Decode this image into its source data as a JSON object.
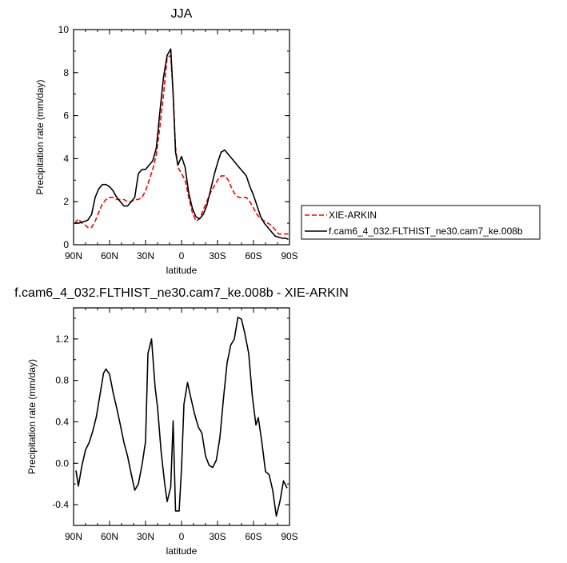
{
  "chart_data": [
    {
      "type": "line",
      "title": "JJA",
      "xlabel": "latitude",
      "ylabel": "Precipitation rate (mm/day)",
      "xlim": [
        90,
        -90
      ],
      "ylim": [
        0,
        10
      ],
      "x_ticks": [
        90,
        60,
        30,
        0,
        -30,
        -60,
        -90
      ],
      "x_tick_labels": [
        "90N",
        "60N",
        "30N",
        "0",
        "30S",
        "60S",
        "90S"
      ],
      "y_ticks": [
        0,
        2,
        4,
        6,
        8,
        10
      ],
      "y_tick_labels": [
        "0",
        "2",
        "4",
        "6",
        "8",
        "10"
      ],
      "legend_position": "right, outside the plot",
      "series": [
        {
          "name": "XIE-ARKIN",
          "color": "#ff0000",
          "dashed": true,
          "x": [
            89,
            86,
            83,
            80,
            78,
            75,
            72,
            69,
            66,
            63,
            60,
            57,
            54,
            51,
            48,
            45,
            42,
            39,
            36,
            33,
            30,
            27,
            24,
            21,
            18,
            15,
            12,
            9,
            7,
            5,
            3,
            0,
            -3,
            -6,
            -9,
            -12,
            -15,
            -18,
            -21,
            -24,
            -27,
            -30,
            -33,
            -36,
            -39,
            -42,
            -45,
            -48,
            -51,
            -54,
            -57,
            -60,
            -63,
            -66,
            -69,
            -72,
            -75,
            -78,
            -81,
            -84,
            -87,
            -89
          ],
          "y": [
            1.0,
            1.2,
            1.0,
            0.9,
            0.8,
            0.8,
            1.1,
            1.5,
            1.9,
            2.1,
            2.2,
            2.2,
            2.1,
            2.1,
            2.1,
            2.0,
            2.0,
            2.1,
            2.1,
            2.2,
            2.5,
            3.0,
            3.5,
            4.2,
            5.5,
            7.0,
            8.7,
            8.8,
            7.0,
            4.5,
            3.6,
            3.3,
            3.0,
            2.2,
            1.5,
            1.1,
            1.2,
            1.6,
            2.0,
            2.4,
            2.7,
            3.0,
            3.2,
            3.2,
            3.0,
            2.6,
            2.3,
            2.2,
            2.2,
            2.2,
            2.0,
            1.7,
            1.4,
            1.2,
            1.1,
            1.0,
            0.9,
            0.7,
            0.5,
            0.5,
            0.5,
            0.5
          ]
        },
        {
          "name": "f.cam6_4_032.FLTHIST_ne30.cam7_ke.008b",
          "color": "#000000",
          "dashed": false,
          "x": [
            89,
            86,
            83,
            80,
            78,
            75,
            72,
            69,
            66,
            63,
            60,
            57,
            54,
            51,
            48,
            45,
            42,
            39,
            36,
            33,
            30,
            27,
            24,
            21,
            18,
            15,
            12,
            9,
            7,
            5,
            3,
            0,
            -3,
            -6,
            -9,
            -12,
            -15,
            -18,
            -21,
            -24,
            -27,
            -30,
            -33,
            -36,
            -39,
            -42,
            -45,
            -48,
            -51,
            -54,
            -57,
            -60,
            -63,
            -66,
            -69,
            -72,
            -75,
            -78,
            -81,
            -84,
            -87,
            -89
          ],
          "y": [
            1.0,
            1.0,
            1.05,
            1.1,
            1.15,
            1.4,
            2.2,
            2.6,
            2.8,
            2.8,
            2.7,
            2.5,
            2.2,
            2.0,
            1.8,
            1.8,
            2.0,
            2.2,
            3.3,
            3.5,
            3.5,
            3.7,
            3.9,
            4.5,
            6.2,
            7.8,
            8.8,
            9.1,
            7.0,
            4.3,
            3.7,
            4.1,
            3.6,
            2.4,
            1.7,
            1.3,
            1.2,
            1.4,
            1.8,
            2.5,
            3.2,
            3.8,
            4.3,
            4.4,
            4.2,
            4.0,
            3.8,
            3.6,
            3.4,
            3.2,
            2.7,
            2.3,
            1.8,
            1.3,
            1.0,
            0.8,
            0.6,
            0.4,
            0.35,
            0.3,
            0.3,
            0.25
          ]
        }
      ]
    },
    {
      "type": "line",
      "title": "f.cam6_4_032.FLTHIST_ne30.cam7_ke.008b - XIE-ARKIN",
      "xlabel": "latitude",
      "ylabel": "Precipitation rate (mm/day)",
      "xlim": [
        90,
        -90
      ],
      "ylim": [
        -0.6,
        1.5
      ],
      "x_ticks": [
        90,
        60,
        30,
        0,
        -30,
        -60,
        -90
      ],
      "x_tick_labels": [
        "90N",
        "60N",
        "30N",
        "0",
        "30S",
        "60S",
        "90S"
      ],
      "y_ticks": [
        -0.4,
        0.0,
        0.4,
        0.8,
        1.2
      ],
      "y_tick_labels": [
        "-0.4",
        "0.0",
        "0.4",
        "0.8",
        "1.2"
      ],
      "series": [
        {
          "color": "#000000",
          "x": [
            88,
            86,
            83,
            80,
            77,
            74,
            71,
            68,
            65,
            63,
            60,
            57,
            54,
            51,
            48,
            45,
            42,
            39,
            36,
            33,
            30,
            28,
            25,
            22,
            20,
            17,
            14,
            12,
            9,
            7,
            5,
            2,
            0,
            -2,
            -5,
            -8,
            -11,
            -14,
            -17,
            -20,
            -23,
            -26,
            -29,
            -32,
            -35,
            -38,
            -41,
            -44,
            -47,
            -50,
            -53,
            -56,
            -59,
            -62,
            -64,
            -67,
            -70,
            -73,
            -76,
            -79,
            -82,
            -85,
            -88
          ],
          "y": [
            -0.07,
            -0.22,
            -0.02,
            0.13,
            0.2,
            0.31,
            0.45,
            0.66,
            0.87,
            0.91,
            0.86,
            0.68,
            0.53,
            0.37,
            0.2,
            0.07,
            -0.1,
            -0.26,
            -0.2,
            -0.02,
            0.21,
            1.06,
            1.2,
            0.73,
            0.54,
            0.11,
            -0.2,
            -0.37,
            -0.23,
            0.41,
            -0.46,
            -0.46,
            -0.05,
            0.57,
            0.78,
            0.62,
            0.47,
            0.35,
            0.29,
            0.07,
            -0.02,
            -0.04,
            0.03,
            0.25,
            0.63,
            0.97,
            1.14,
            1.2,
            1.41,
            1.39,
            1.24,
            1.06,
            0.65,
            0.37,
            0.44,
            0.2,
            -0.08,
            -0.11,
            -0.26,
            -0.51,
            -0.37,
            -0.17,
            -0.24
          ]
        }
      ]
    }
  ]
}
